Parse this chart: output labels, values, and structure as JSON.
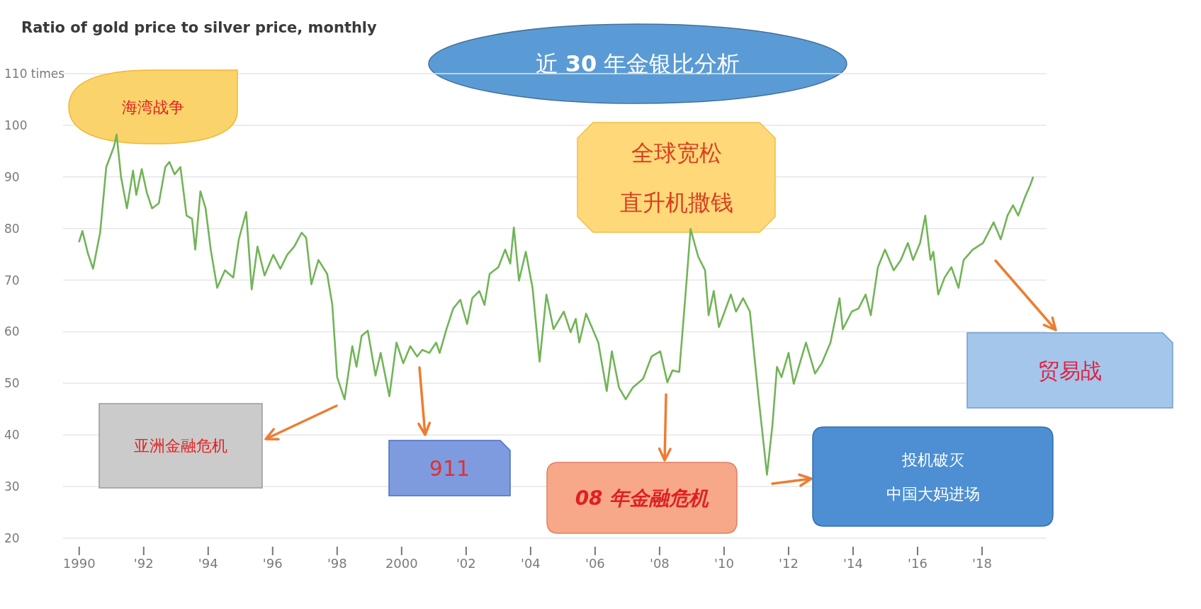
{
  "chart_data": {
    "type": "line",
    "title": "Ratio of gold price to silver price, monthly",
    "subtitle": "近 30 年金银比分析",
    "x": [
      1990.0,
      1990.1,
      1990.27,
      1990.43,
      1990.65,
      1990.84,
      1991.08,
      1991.16,
      1991.3,
      1991.48,
      1991.67,
      1991.77,
      1991.94,
      1992.1,
      1992.26,
      1992.47,
      1992.67,
      1992.8,
      1992.96,
      1993.14,
      1993.33,
      1993.5,
      1993.6,
      1993.76,
      1993.92,
      1994.08,
      1994.28,
      1994.52,
      1994.78,
      1994.95,
      1995.18,
      1995.35,
      1995.53,
      1995.75,
      1996.02,
      1996.24,
      1996.45,
      1996.67,
      1996.9,
      1997.04,
      1997.2,
      1997.42,
      1997.69,
      1997.85,
      1998.0,
      1998.23,
      1998.47,
      1998.6,
      1998.76,
      1998.95,
      1999.19,
      1999.35,
      1999.62,
      1999.84,
      2000.05,
      2000.27,
      2000.48,
      2000.64,
      2000.86,
      2001.07,
      2001.18,
      2001.39,
      2001.6,
      2001.82,
      2002.03,
      2002.19,
      2002.41,
      2002.57,
      2002.73,
      2003.0,
      2003.21,
      2003.37,
      2003.48,
      2003.64,
      2003.85,
      2004.06,
      2004.28,
      2004.49,
      2004.71,
      2005.03,
      2005.24,
      2005.4,
      2005.51,
      2005.72,
      2006.1,
      2006.36,
      2006.52,
      2006.74,
      2006.95,
      2007.17,
      2007.49,
      2007.75,
      2008.02,
      2008.24,
      2008.4,
      2008.61,
      2008.82,
      2008.96,
      2009.2,
      2009.41,
      2009.52,
      2009.68,
      2009.84,
      2010.21,
      2010.37,
      2010.59,
      2010.8,
      2011.07,
      2011.33,
      2011.5,
      2011.64,
      2011.78,
      2012.0,
      2012.16,
      2012.54,
      2012.82,
      2013.03,
      2013.3,
      2013.58,
      2013.68,
      2013.96,
      2014.17,
      2014.39,
      2014.55,
      2014.77,
      2014.99,
      2015.26,
      2015.48,
      2015.7,
      2015.86,
      2016.08,
      2016.24,
      2016.4,
      2016.49,
      2016.64,
      2016.84,
      2017.05,
      2017.27,
      2017.43,
      2017.71,
      2018.03,
      2018.36,
      2018.58,
      2018.79,
      2018.96,
      2019.12,
      2019.34,
      2019.5,
      2019.58
    ],
    "series": [
      {
        "color": "#72b458",
        "values": [
          77.5,
          79.5,
          75.2,
          72.2,
          79.2,
          91.9,
          95.9,
          98.2,
          89.9,
          83.9,
          91.2,
          86.5,
          91.5,
          86.9,
          83.9,
          84.9,
          91.9,
          92.9,
          90.5,
          91.9,
          82.5,
          81.9,
          75.9,
          87.2,
          83.9,
          75.9,
          68.5,
          71.9,
          70.5,
          77.9,
          83.2,
          68.2,
          76.5,
          70.9,
          74.9,
          72.2,
          74.9,
          76.5,
          79.2,
          78.2,
          69.2,
          73.9,
          71.2,
          65.2,
          51.2,
          46.9,
          57.2,
          53.2,
          59.2,
          60.2,
          51.5,
          55.9,
          47.5,
          57.9,
          53.9,
          57.2,
          55.2,
          56.5,
          55.9,
          57.9,
          55.9,
          60.5,
          64.5,
          66.2,
          61.5,
          66.5,
          67.9,
          65.2,
          71.2,
          72.5,
          75.9,
          73.2,
          80.2,
          69.9,
          75.5,
          68.5,
          54.2,
          67.2,
          60.5,
          63.9,
          59.9,
          62.5,
          57.9,
          63.5,
          57.9,
          48.5,
          56.2,
          49.2,
          46.9,
          49.2,
          50.9,
          55.2,
          56.2,
          50.2,
          52.5,
          52.2,
          68.5,
          79.9,
          74.5,
          71.9,
          63.2,
          67.9,
          60.9,
          67.2,
          63.9,
          66.5,
          63.9,
          47.2,
          32.3,
          41.9,
          53.2,
          51.2,
          55.9,
          49.9,
          57.9,
          51.9,
          53.9,
          57.9,
          66.5,
          60.5,
          63.9,
          64.5,
          67.2,
          63.2,
          72.5,
          75.9,
          71.9,
          73.9,
          77.2,
          73.9,
          77.2,
          82.5,
          73.9,
          75.5,
          67.2,
          70.5,
          72.5,
          68.5,
          73.9,
          75.9,
          77.2,
          81.2,
          77.9,
          82.5,
          84.5,
          82.5,
          86.2,
          88.5,
          89.9
        ]
      }
    ],
    "xlim": [
      1989.5,
      2020
    ],
    "xticks": [
      {
        "value": 1990,
        "label": "1990"
      },
      {
        "value": 1992,
        "label": "'92"
      },
      {
        "value": 1994,
        "label": "'94"
      },
      {
        "value": 1996,
        "label": "'96"
      },
      {
        "value": 1998,
        "label": "'98"
      },
      {
        "value": 2000,
        "label": "2000"
      },
      {
        "value": 2002,
        "label": "'02"
      },
      {
        "value": 2004,
        "label": "'04"
      },
      {
        "value": 2006,
        "label": "'06"
      },
      {
        "value": 2008,
        "label": "'08"
      },
      {
        "value": 2010,
        "label": "'10"
      },
      {
        "value": 2012,
        "label": "'12"
      },
      {
        "value": 2014,
        "label": "'14"
      },
      {
        "value": 2016,
        "label": "'16"
      },
      {
        "value": 2018,
        "label": "'18"
      }
    ],
    "ylim": [
      20,
      110
    ],
    "yticks": [
      20,
      30,
      40,
      50,
      60,
      70,
      80,
      90,
      100,
      {
        "value": 110,
        "label": "110 times"
      }
    ],
    "grid": "y",
    "annotations": [
      "海湾战争",
      "亚洲金融危机",
      "911",
      "08 年金融危机",
      "全球宽松直升机撒钱",
      "投机破灭中国大妈进场",
      "贸易战"
    ]
  }
}
